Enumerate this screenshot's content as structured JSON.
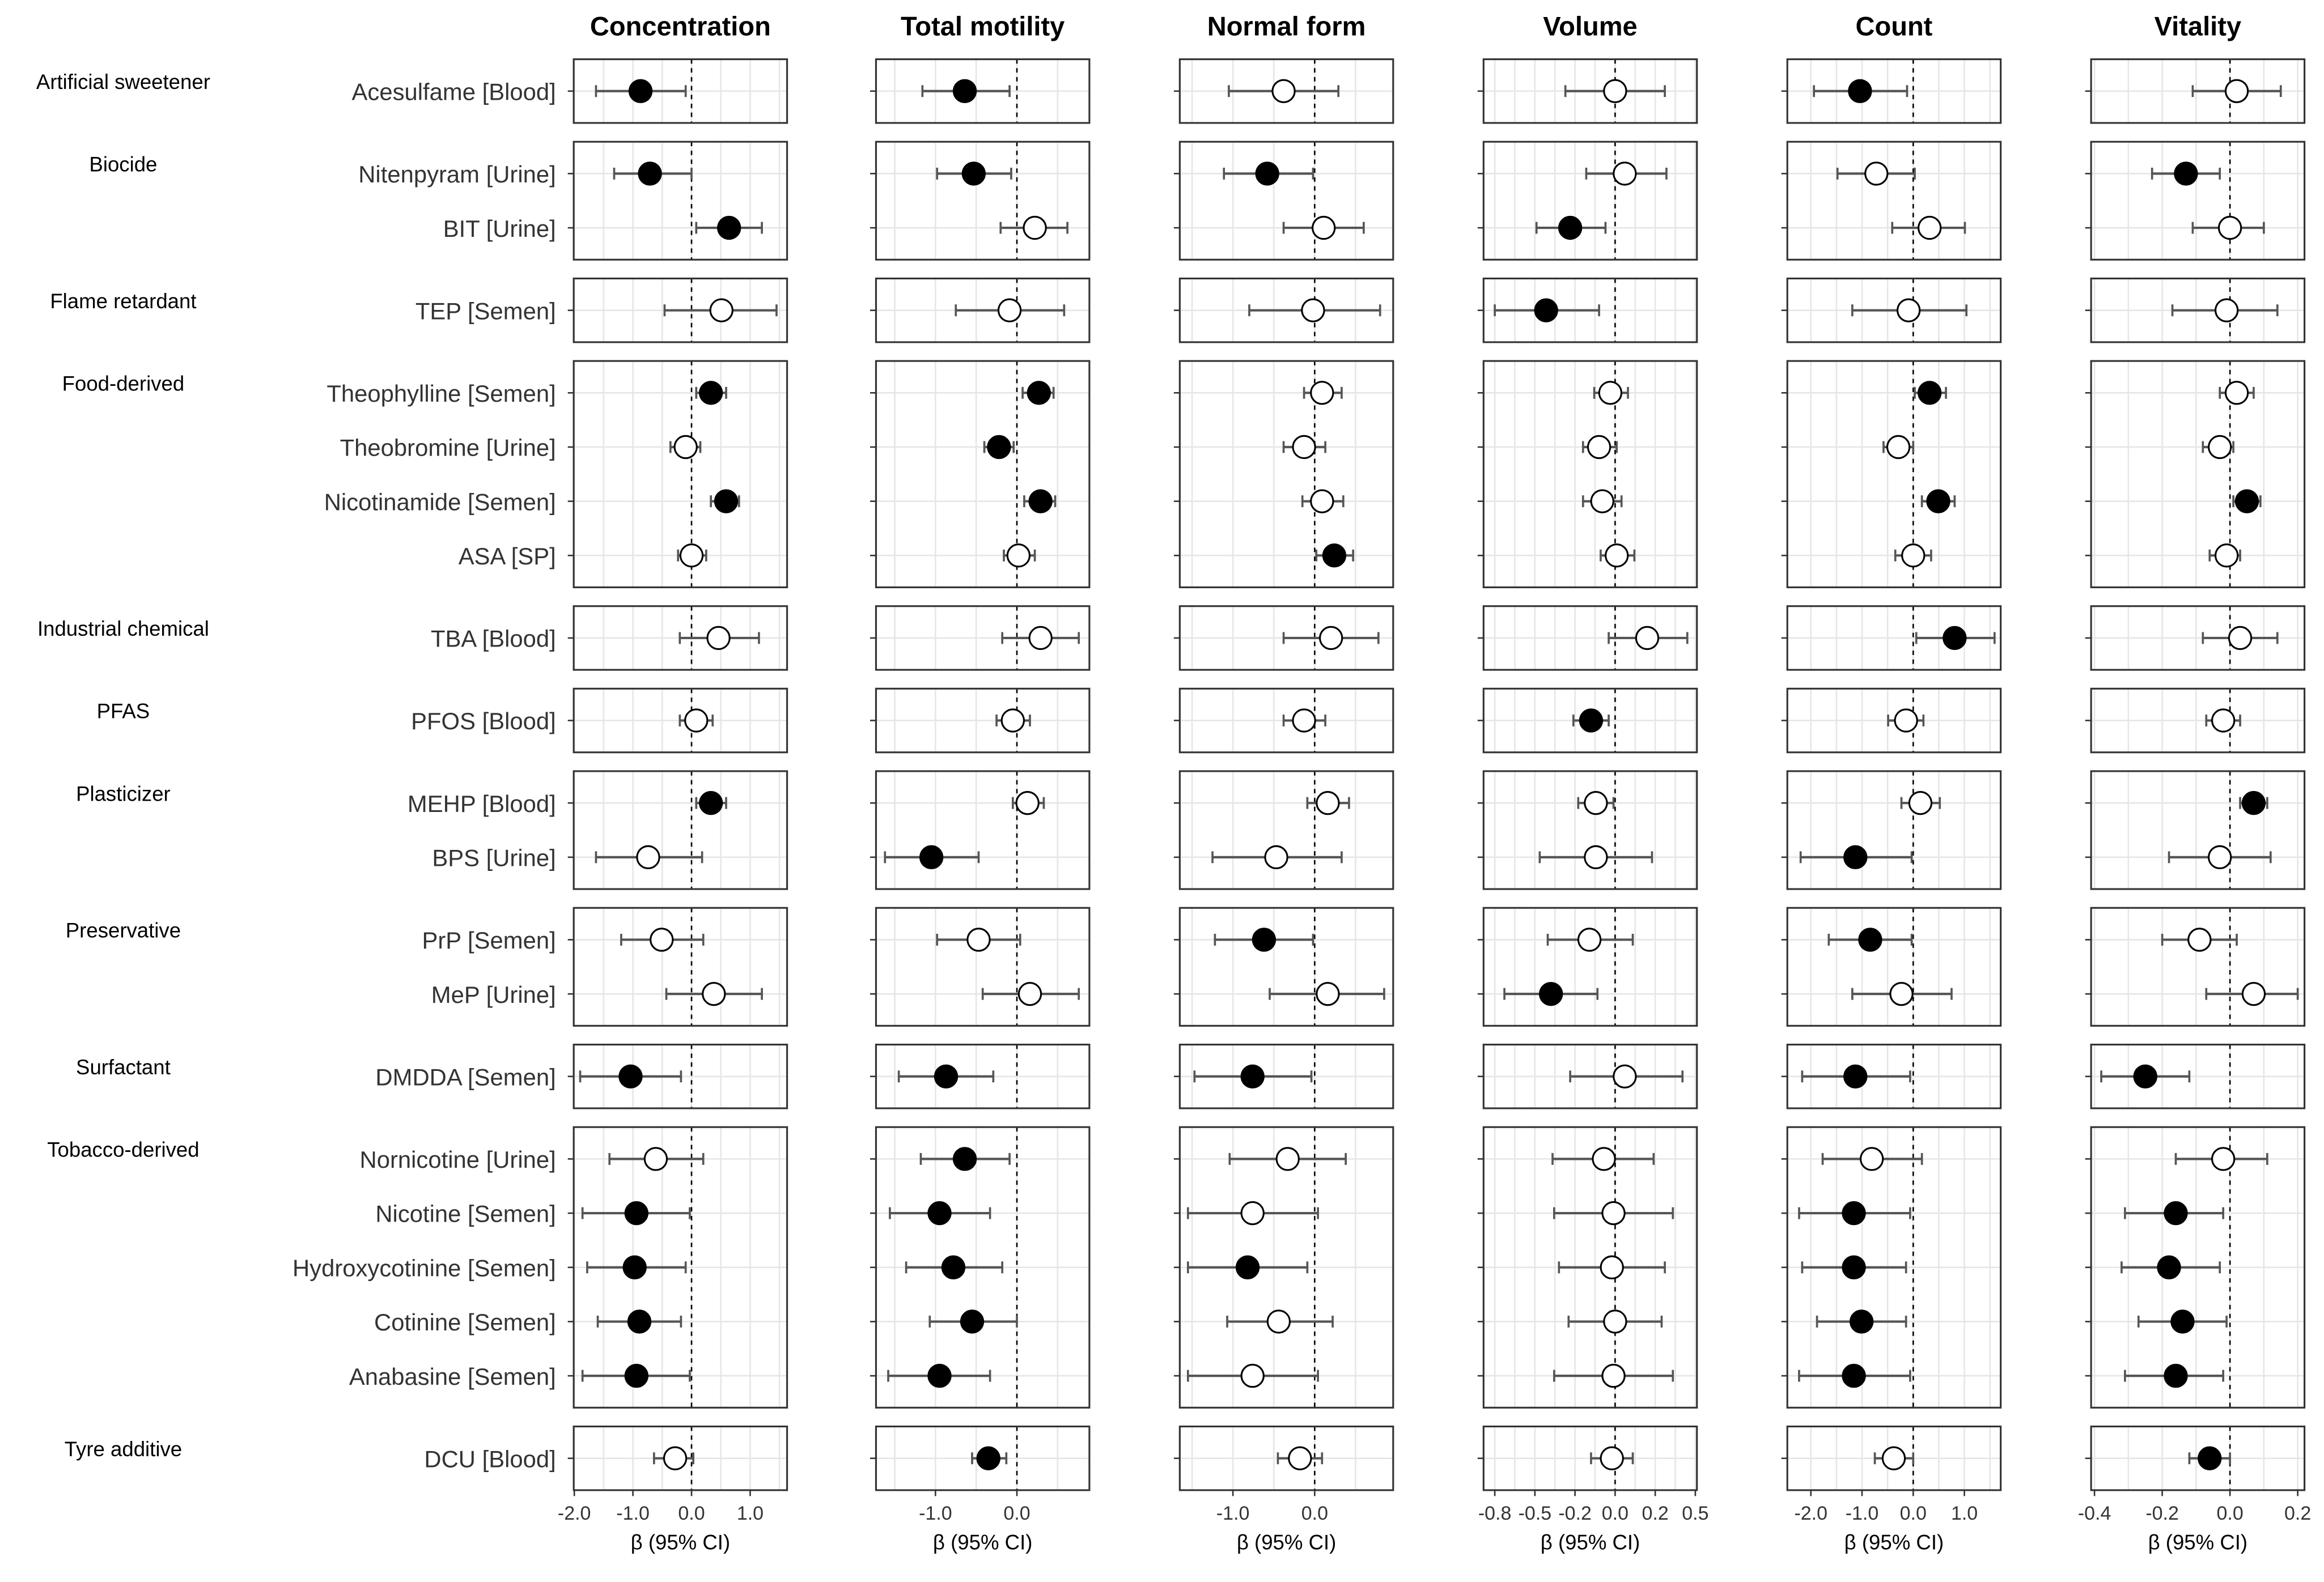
{
  "chart_data": {
    "type": "forest",
    "xlabel": "β (95% CI)",
    "legend": "filled circle = significant, open circle = not significant",
    "groups": [
      {
        "name": "Artificial sweetener",
        "rows": [
          "Acesulfame [Blood]"
        ]
      },
      {
        "name": "Biocide",
        "rows": [
          "Nitenpyram [Urine]",
          "BIT [Urine]"
        ]
      },
      {
        "name": "Flame retardant",
        "rows": [
          "TEP [Semen]"
        ]
      },
      {
        "name": "Food-derived",
        "rows": [
          "Theophylline [Semen]",
          "Theobromine [Urine]",
          "Nicotinamide [Semen]",
          "ASA [SP]"
        ]
      },
      {
        "name": "Industrial chemical",
        "rows": [
          "TBA [Blood]"
        ]
      },
      {
        "name": "PFAS",
        "rows": [
          "PFOS [Blood]"
        ]
      },
      {
        "name": "Plasticizer",
        "rows": [
          "MEHP [Blood]",
          "BPS [Urine]"
        ]
      },
      {
        "name": "Preservative",
        "rows": [
          "PrP [Semen]",
          "MeP [Urine]"
        ]
      },
      {
        "name": "Surfactant",
        "rows": [
          "DMDDA [Semen]"
        ]
      },
      {
        "name": "Tobacco-derived",
        "rows": [
          "Nornicotine [Urine]",
          "Nicotine [Semen]",
          "Hydroxycotinine [Semen]",
          "Cotinine [Semen]",
          "Anabasine [Semen]"
        ]
      },
      {
        "name": "Tyre additive",
        "rows": [
          "DCU [Blood]"
        ]
      }
    ],
    "panels": [
      {
        "title": "Concentration",
        "xlim": [
          -2.01,
          1.63
        ],
        "ticks": [
          -2,
          -1,
          0,
          1
        ],
        "tick_labels": [
          "-2.0",
          "-1.0",
          "0.0",
          "1.0"
        ],
        "values": [
          [
            -0.87,
            -1.63,
            -0.1,
            1
          ],
          [
            -0.71,
            -1.32,
            0,
            1
          ],
          [
            0.64,
            0.08,
            1.2,
            1
          ],
          [
            0.51,
            -0.46,
            1.45,
            0
          ],
          [
            0.33,
            0.08,
            0.59,
            1
          ],
          [
            -0.1,
            -0.36,
            0.15,
            0
          ],
          [
            0.59,
            0.33,
            0.81,
            1
          ],
          [
            0,
            -0.23,
            0.25,
            0
          ],
          [
            0.46,
            -0.2,
            1.15,
            0
          ],
          [
            0.08,
            -0.2,
            0.36,
            0
          ],
          [
            0.33,
            0.08,
            0.59,
            1
          ],
          [
            -0.74,
            -1.63,
            0.18,
            0
          ],
          [
            -0.51,
            -1.2,
            0.2,
            0
          ],
          [
            0.38,
            -0.43,
            1.2,
            0
          ],
          [
            -1.04,
            -1.9,
            -0.18,
            1
          ],
          [
            -0.61,
            -1.4,
            0.2,
            0
          ],
          [
            -0.94,
            -1.86,
            -0.03,
            1
          ],
          [
            -0.97,
            -1.78,
            -0.1,
            1
          ],
          [
            -0.89,
            -1.6,
            -0.18,
            1
          ],
          [
            -0.94,
            -1.86,
            -0.03,
            1
          ],
          [
            -0.28,
            -0.64,
            0.03,
            0
          ]
        ]
      },
      {
        "title": "Total motility",
        "xlim": [
          -1.73,
          0.89
        ],
        "ticks": [
          -1,
          0
        ],
        "tick_labels": [
          "-1.0",
          "0.0"
        ],
        "values": [
          [
            -0.64,
            -1.16,
            -0.09,
            1
          ],
          [
            -0.53,
            -0.98,
            -0.07,
            1
          ],
          [
            0.22,
            -0.2,
            0.62,
            0
          ],
          [
            -0.09,
            -0.75,
            0.58,
            0
          ],
          [
            0.27,
            0.07,
            0.45,
            1
          ],
          [
            -0.22,
            -0.4,
            -0.04,
            1
          ],
          [
            0.29,
            0.09,
            0.47,
            1
          ],
          [
            0.02,
            -0.16,
            0.22,
            0
          ],
          [
            0.29,
            -0.18,
            0.76,
            0
          ],
          [
            -0.05,
            -0.25,
            0.16,
            0
          ],
          [
            0.13,
            -0.05,
            0.33,
            0
          ],
          [
            -1.05,
            -1.62,
            -0.47,
            1
          ],
          [
            -0.47,
            -0.98,
            0.04,
            0
          ],
          [
            0.16,
            -0.42,
            0.76,
            0
          ],
          [
            -0.87,
            -1.45,
            -0.29,
            1
          ],
          [
            -0.64,
            -1.18,
            -0.09,
            1
          ],
          [
            -0.95,
            -1.56,
            -0.33,
            1
          ],
          [
            -0.78,
            -1.36,
            -0.18,
            1
          ],
          [
            -0.55,
            -1.07,
            0,
            1
          ],
          [
            -0.95,
            -1.58,
            -0.33,
            1
          ],
          [
            -0.35,
            -0.55,
            -0.13,
            1
          ]
        ]
      },
      {
        "title": "Normal form",
        "xlim": [
          -1.65,
          0.96
        ],
        "ticks": [
          -1,
          0
        ],
        "tick_labels": [
          "-1.0",
          "0.0"
        ],
        "values": [
          [
            -0.38,
            -1.05,
            0.29,
            0
          ],
          [
            -0.58,
            -1.11,
            -0.02,
            1
          ],
          [
            0.11,
            -0.38,
            0.6,
            0
          ],
          [
            -0.02,
            -0.8,
            0.8,
            0
          ],
          [
            0.09,
            -0.13,
            0.33,
            0
          ],
          [
            -0.13,
            -0.38,
            0.13,
            0
          ],
          [
            0.09,
            -0.15,
            0.35,
            0
          ],
          [
            0.24,
            0.02,
            0.47,
            1
          ],
          [
            0.2,
            -0.38,
            0.78,
            0
          ],
          [
            -0.13,
            -0.38,
            0.13,
            0
          ],
          [
            0.16,
            -0.09,
            0.42,
            0
          ],
          [
            -0.47,
            -1.25,
            0.33,
            0
          ],
          [
            -0.62,
            -1.22,
            -0.02,
            1
          ],
          [
            0.16,
            -0.55,
            0.85,
            0
          ],
          [
            -0.76,
            -1.47,
            -0.04,
            1
          ],
          [
            -0.33,
            -1.04,
            0.38,
            0
          ],
          [
            -0.76,
            -1.55,
            0.04,
            0
          ],
          [
            -0.82,
            -1.55,
            -0.09,
            1
          ],
          [
            -0.44,
            -1.07,
            0.22,
            0
          ],
          [
            -0.76,
            -1.55,
            0.04,
            0
          ],
          [
            -0.18,
            -0.45,
            0.09,
            0
          ]
        ]
      },
      {
        "title": "Volume",
        "xlim": [
          -0.82,
          0.51
        ],
        "ticks": [
          -0.75,
          -0.5,
          -0.25,
          0,
          0.25,
          0.5
        ],
        "tick_labels": [
          "-0.8",
          "-0.5",
          "-0.2",
          "0.0",
          "0.2",
          "0.5"
        ],
        "values": [
          [
            0,
            -0.31,
            0.31,
            0
          ],
          [
            0.06,
            -0.18,
            0.32,
            0
          ],
          [
            -0.28,
            -0.49,
            -0.06,
            1
          ],
          [
            -0.43,
            -0.75,
            -0.1,
            1
          ],
          [
            -0.03,
            -0.13,
            0.08,
            0
          ],
          [
            -0.1,
            -0.2,
            0.01,
            0
          ],
          [
            -0.08,
            -0.2,
            0.04,
            0
          ],
          [
            0.01,
            -0.09,
            0.12,
            0
          ],
          [
            0.2,
            -0.04,
            0.45,
            0
          ],
          [
            -0.15,
            -0.26,
            -0.04,
            1
          ],
          [
            -0.12,
            -0.23,
            -0.01,
            0
          ],
          [
            -0.12,
            -0.47,
            0.23,
            0
          ],
          [
            -0.16,
            -0.42,
            0.11,
            0
          ],
          [
            -0.4,
            -0.69,
            -0.11,
            1
          ],
          [
            0.06,
            -0.28,
            0.42,
            0
          ],
          [
            -0.07,
            -0.39,
            0.24,
            0
          ],
          [
            -0.01,
            -0.38,
            0.36,
            0
          ],
          [
            -0.02,
            -0.35,
            0.31,
            0
          ],
          [
            0,
            -0.29,
            0.29,
            0
          ],
          [
            -0.01,
            -0.38,
            0.36,
            0
          ],
          [
            -0.02,
            -0.15,
            0.11,
            0
          ]
        ]
      },
      {
        "title": "Count",
        "xlim": [
          -2.46,
          1.71
        ],
        "ticks": [
          -2,
          -1,
          0,
          1
        ],
        "tick_labels": [
          "-2.0",
          "-1.0",
          "0.0",
          "1.0"
        ],
        "values": [
          [
            -1.04,
            -1.94,
            -0.12,
            1
          ],
          [
            -0.72,
            -1.48,
            0.03,
            0
          ],
          [
            0.32,
            -0.41,
            1.01,
            0
          ],
          [
            -0.09,
            -1.19,
            1.04,
            0
          ],
          [
            0.32,
            0.03,
            0.64,
            1
          ],
          [
            -0.29,
            -0.58,
            0,
            0
          ],
          [
            0.49,
            0.17,
            0.81,
            1
          ],
          [
            0,
            -0.35,
            0.35,
            0
          ],
          [
            0.81,
            0.06,
            1.59,
            1
          ],
          [
            -0.14,
            -0.49,
            0.2,
            0
          ],
          [
            0.14,
            -0.23,
            0.52,
            0
          ],
          [
            -1.13,
            -2.2,
            -0.03,
            1
          ],
          [
            -0.84,
            -1.65,
            -0.03,
            1
          ],
          [
            -0.23,
            -1.19,
            0.75,
            0
          ],
          [
            -1.13,
            -2.17,
            -0.06,
            1
          ],
          [
            -0.81,
            -1.77,
            0.17,
            0
          ],
          [
            -1.16,
            -2.23,
            -0.06,
            1
          ],
          [
            -1.16,
            -2.17,
            -0.14,
            1
          ],
          [
            -1.01,
            -1.88,
            -0.14,
            1
          ],
          [
            -1.16,
            -2.23,
            -0.06,
            1
          ],
          [
            -0.38,
            -0.75,
            0,
            0
          ]
        ]
      },
      {
        "title": "Vitality",
        "xlim": [
          -0.41,
          0.22
        ],
        "ticks": [
          -0.4,
          -0.2,
          0,
          0.2
        ],
        "tick_labels": [
          "-0.4",
          "-0.2",
          "0.0",
          "0.2"
        ],
        "values": [
          [
            0.02,
            -0.11,
            0.15,
            0
          ],
          [
            -0.13,
            -0.23,
            -0.03,
            1
          ],
          [
            0,
            -0.11,
            0.1,
            0
          ],
          [
            -0.01,
            -0.17,
            0.14,
            0
          ],
          [
            0.02,
            -0.03,
            0.07,
            0
          ],
          [
            -0.03,
            -0.08,
            0.01,
            0
          ],
          [
            0.05,
            0.01,
            0.09,
            1
          ],
          [
            -0.01,
            -0.06,
            0.03,
            0
          ],
          [
            0.03,
            -0.08,
            0.14,
            0
          ],
          [
            -0.02,
            -0.07,
            0.03,
            0
          ],
          [
            0.07,
            0.03,
            0.11,
            1
          ],
          [
            -0.03,
            -0.18,
            0.12,
            0
          ],
          [
            -0.09,
            -0.2,
            0.02,
            0
          ],
          [
            0.07,
            -0.07,
            0.2,
            0
          ],
          [
            -0.25,
            -0.38,
            -0.12,
            1
          ],
          [
            -0.02,
            -0.16,
            0.11,
            0
          ],
          [
            -0.16,
            -0.31,
            -0.02,
            1
          ],
          [
            -0.18,
            -0.32,
            -0.03,
            1
          ],
          [
            -0.14,
            -0.27,
            -0.01,
            1
          ],
          [
            -0.16,
            -0.31,
            -0.02,
            1
          ],
          [
            -0.06,
            -0.12,
            0,
            1
          ]
        ]
      }
    ],
    "value_format": "[estimate, ci_low, ci_high, significant(1/0)]"
  }
}
